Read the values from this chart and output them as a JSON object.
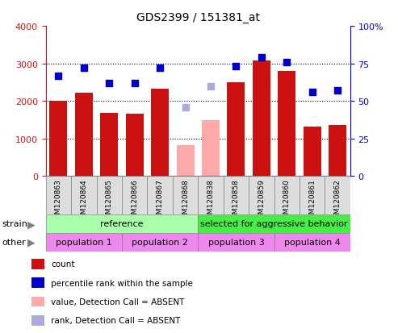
{
  "title": "GDS2399 / 151381_at",
  "samples": [
    "GSM120863",
    "GSM120864",
    "GSM120865",
    "GSM120866",
    "GSM120867",
    "GSM120868",
    "GSM120838",
    "GSM120858",
    "GSM120859",
    "GSM120860",
    "GSM120861",
    "GSM120862"
  ],
  "bar_values": [
    2010,
    2210,
    1690,
    1665,
    2330,
    null,
    null,
    2510,
    3070,
    2800,
    1310,
    1360
  ],
  "bar_absent_values": [
    null,
    null,
    null,
    null,
    null,
    835,
    1490,
    null,
    null,
    null,
    null,
    null
  ],
  "percentile_values": [
    67,
    72,
    62,
    62,
    72,
    null,
    null,
    73,
    79,
    76,
    56,
    57
  ],
  "percentile_absent_values": [
    null,
    null,
    null,
    null,
    null,
    46,
    60,
    null,
    null,
    null,
    null,
    null
  ],
  "bar_color": "#cc1111",
  "bar_absent_color": "#ffaaaa",
  "dot_color": "#0000cc",
  "dot_absent_color": "#aaaadd",
  "ylim_left": [
    0,
    4000
  ],
  "ylim_right": [
    0,
    100
  ],
  "yticks_left": [
    0,
    1000,
    2000,
    3000,
    4000
  ],
  "ytick_labels_left": [
    "0",
    "1000",
    "2000",
    "3000",
    "4000"
  ],
  "yticks_right": [
    0,
    25,
    50,
    75,
    100
  ],
  "ytick_labels_right": [
    "0",
    "25",
    "50",
    "75",
    "100%"
  ],
  "strain_ref_color": "#aaffaa",
  "strain_sel_color": "#44ee44",
  "pop_color_light": "#ee88ee",
  "pop_color_dark": "#dd44dd",
  "legend_items": [
    {
      "label": "count",
      "color": "#cc1111"
    },
    {
      "label": "percentile rank within the sample",
      "color": "#0000cc"
    },
    {
      "label": "value, Detection Call = ABSENT",
      "color": "#ffaaaa"
    },
    {
      "label": "rank, Detection Call = ABSENT",
      "color": "#aaaadd"
    }
  ]
}
